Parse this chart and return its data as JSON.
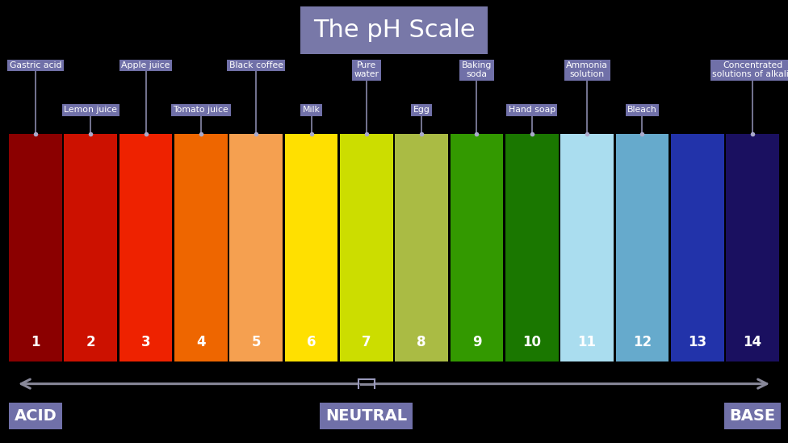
{
  "title": "The pH Scale",
  "title_bg": "#7878a8",
  "background_color": "#000000",
  "bar_colors": [
    "#8B0000",
    "#CC1100",
    "#EE2200",
    "#EE6600",
    "#F5A050",
    "#FFE000",
    "#CCDD00",
    "#AABB44",
    "#339900",
    "#1A7700",
    "#AADDEF",
    "#66AACC",
    "#2233AA",
    "#1A1060"
  ],
  "ph_numbers": [
    1,
    2,
    3,
    4,
    5,
    6,
    7,
    8,
    9,
    10,
    11,
    12,
    13,
    14
  ],
  "labels_top": [
    {
      "text": "Gastric acid",
      "ph": 1
    },
    {
      "text": "Apple juice",
      "ph": 3
    },
    {
      "text": "Black coffee",
      "ph": 5
    },
    {
      "text": "Pure\nwater",
      "ph": 7
    },
    {
      "text": "Baking\nsoda",
      "ph": 9
    },
    {
      "text": "Ammonia\nsolution",
      "ph": 11
    },
    {
      "text": "Concentrated\nsolutions of alkalis",
      "ph": 14
    }
  ],
  "labels_bottom": [
    {
      "text": "Lemon juice",
      "ph": 2
    },
    {
      "text": "Tomato juice",
      "ph": 4
    },
    {
      "text": "Milk",
      "ph": 6
    },
    {
      "text": "Egg",
      "ph": 8
    },
    {
      "text": "Hand soap",
      "ph": 10
    },
    {
      "text": "Bleach",
      "ph": 12
    }
  ],
  "label_bg": "#7070a8",
  "label_fg": "#ffffff",
  "acid_label": "ACID",
  "neutral_label": "NEUTRAL",
  "base_label": "BASE",
  "arrow_color": "#888899",
  "connector_color": "#8888aa"
}
